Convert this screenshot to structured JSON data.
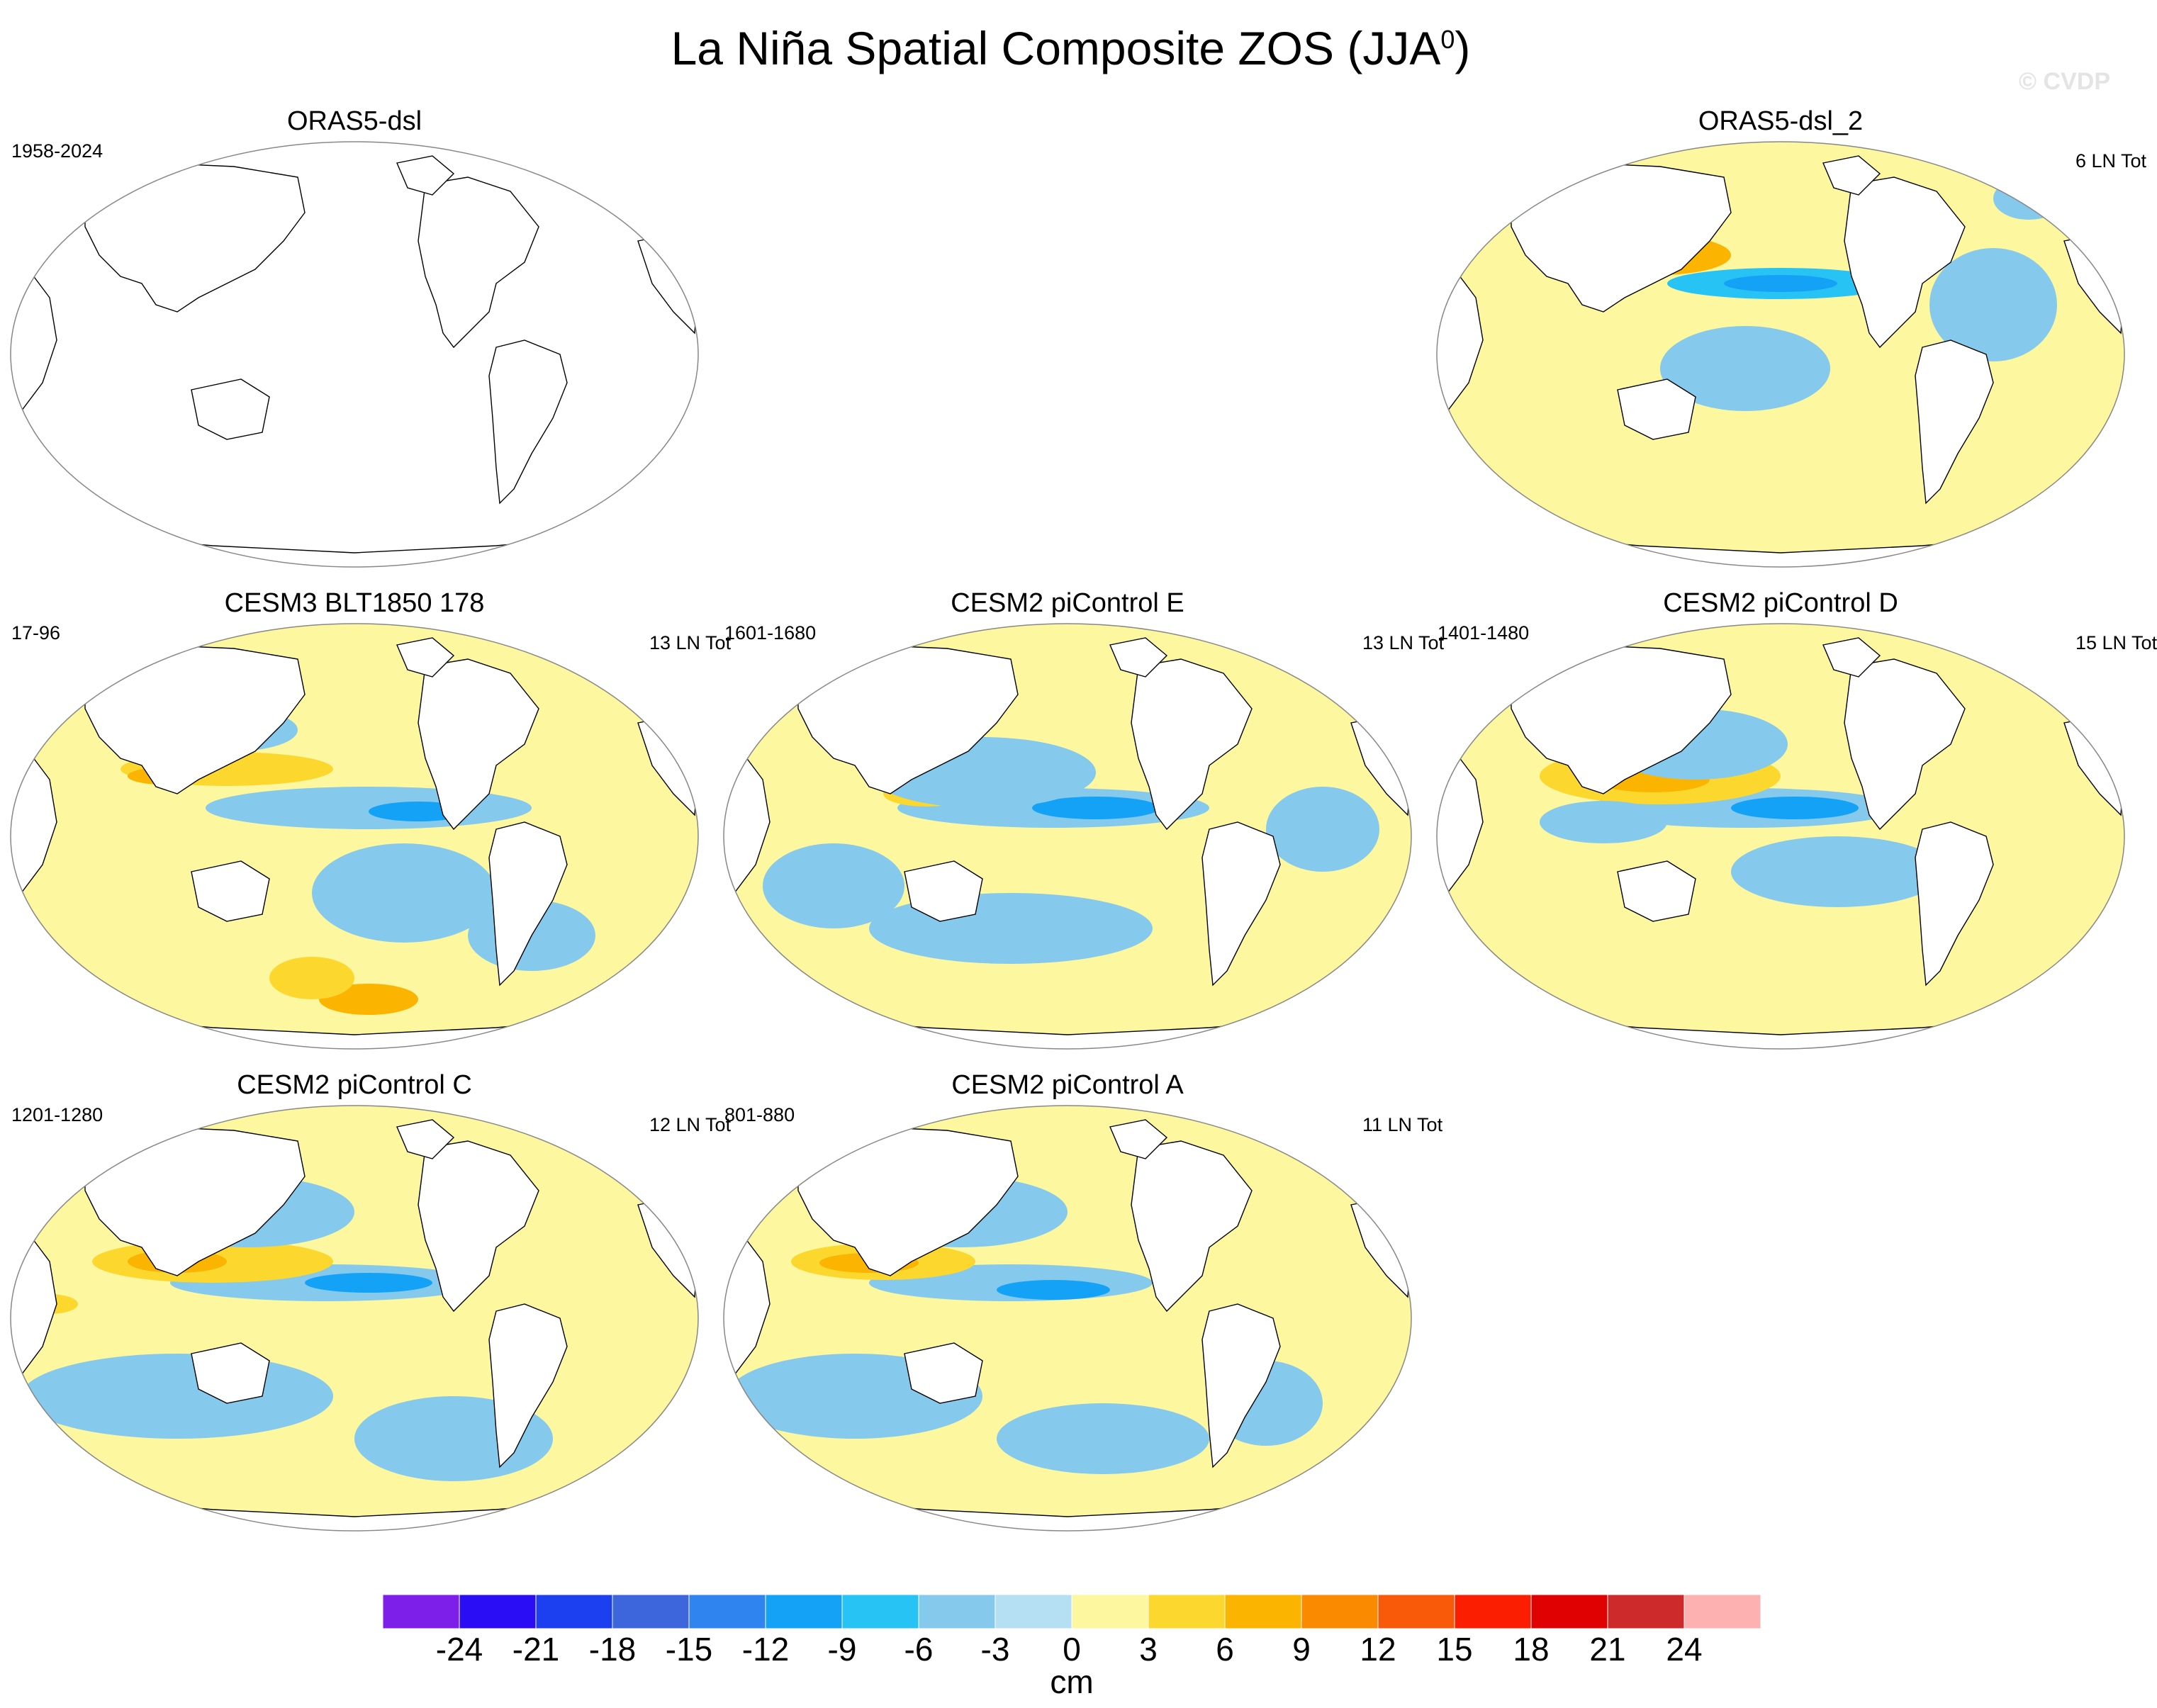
{
  "title": "La Niña Spatial Composite ZOS (JJA",
  "title_sup": "0",
  "title_close": ")",
  "watermark": "© CVDP",
  "panels": [
    {
      "title": "ORAS5-dsl",
      "left_label": "1958-2024",
      "right_label": "",
      "has_data": false
    },
    {
      "title": "ORAS5-dsl_2",
      "left_label": "",
      "right_label": "6 LN Tot",
      "has_data": true
    },
    {
      "title": "CESM3 BLT1850 178",
      "left_label": "17-96",
      "right_label": "13 LN Tot",
      "has_data": true
    },
    {
      "title": "CESM2 piControl E",
      "left_label": "1601-1680",
      "right_label": "13 LN Tot",
      "has_data": true
    },
    {
      "title": "CESM2 piControl D",
      "left_label": "1401-1480",
      "right_label": "15 LN Tot",
      "has_data": true
    },
    {
      "title": "CESM2 piControl C",
      "left_label": "1201-1280",
      "right_label": "12 LN Tot",
      "has_data": true
    },
    {
      "title": "CESM2 piControl A",
      "left_label": "801-880",
      "right_label": "11 LN Tot",
      "has_data": true
    }
  ],
  "chart_data": {
    "type": "heatmap",
    "variable": "ZOS",
    "season": "JJA",
    "units": "cm",
    "colorbar_levels": [
      -24,
      -21,
      -18,
      -15,
      -12,
      -9,
      -6,
      -3,
      0,
      3,
      6,
      9,
      12,
      15,
      18,
      21,
      24
    ],
    "colorbar_colors": [
      "#7d1fe8",
      "#2a0df5",
      "#1c3ff0",
      "#3d66dc",
      "#2f84ef",
      "#14a2f7",
      "#28c3f5",
      "#85c9ec",
      "#b5dff2",
      "#fdf7a0",
      "#fcd82f",
      "#fbb400",
      "#fa8a00",
      "#f85a0a",
      "#fc1e00",
      "#e00202",
      "#cd2b2b",
      "#fdb1b1"
    ],
    "colorbar_label": "cm",
    "features": [
      "Negative (blue) anomaly along the equatorial central-eastern Pacific",
      "Positive (orange) anomaly in the western tropical Pacific north of the equator",
      "Weak positive (yellow) anomalies over much of the Indian and Atlantic oceans"
    ]
  }
}
